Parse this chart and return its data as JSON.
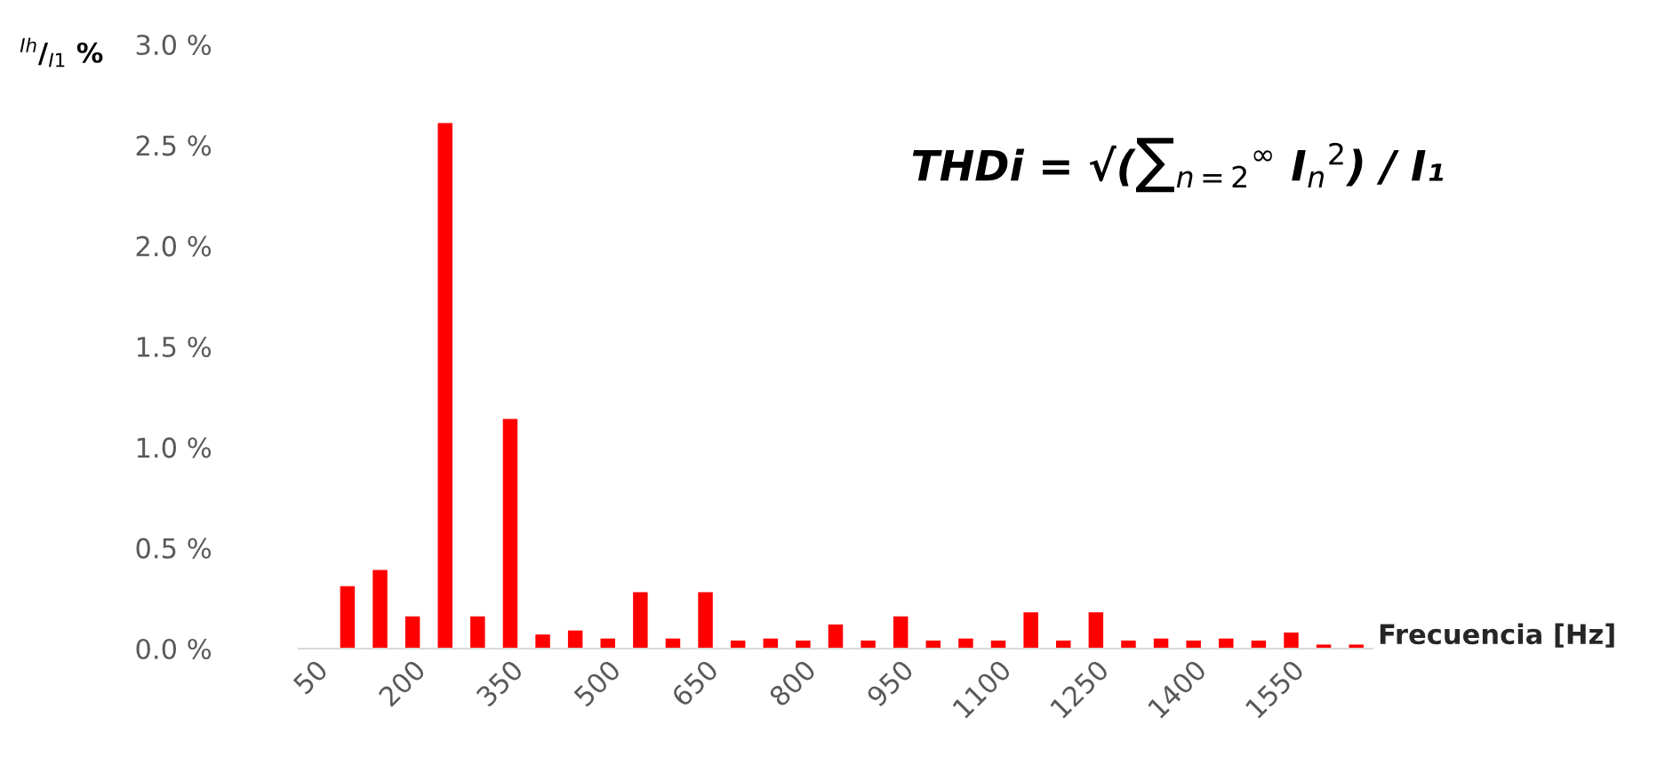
{
  "chart_data": {
    "type": "bar",
    "categories": [
      "50",
      null,
      null,
      "200",
      null,
      null,
      "350",
      null,
      null,
      "500",
      null,
      null,
      "650",
      null,
      null,
      "800",
      null,
      null,
      "950",
      null,
      null,
      "1100",
      null,
      null,
      "1250",
      null,
      null,
      "1400",
      null,
      null,
      "1550",
      null,
      null
    ],
    "values": [
      0,
      0.31,
      0.39,
      0.16,
      2.61,
      0.16,
      1.14,
      0.07,
      0.09,
      0.05,
      0.28,
      0.05,
      0.28,
      0.04,
      0.05,
      0.04,
      0.12,
      0.04,
      0.16,
      0.04,
      0.05,
      0.04,
      0.18,
      0.04,
      0.18,
      0.04,
      0.05,
      0.04,
      0.05,
      0.04,
      0.08,
      0.02,
      0.02
    ],
    "color": "#ff0000",
    "ylim": [
      0,
      3
    ],
    "yticks": [
      {
        "value": 0,
        "label": "0.0 %"
      },
      {
        "value": 0.5,
        "label": "0.5 %"
      },
      {
        "value": 1,
        "label": "1.0 %"
      },
      {
        "value": 1.5,
        "label": "1.5 %"
      },
      {
        "value": 2,
        "label": "2.0 %"
      },
      {
        "value": 2.5,
        "label": "2.5 %"
      },
      {
        "value": 3,
        "label": "3.0 %"
      }
    ],
    "xlabel": "Frecuencia [Hz]",
    "ylabel": "$^{Ih}$/$_{I1}$ %",
    "annotations": [
      "THDi = √(∑$_{n=2}$$^{∞}$ I$_{n}$$^{2}$) / I₁"
    ],
    "grid": false,
    "legend": false
  }
}
